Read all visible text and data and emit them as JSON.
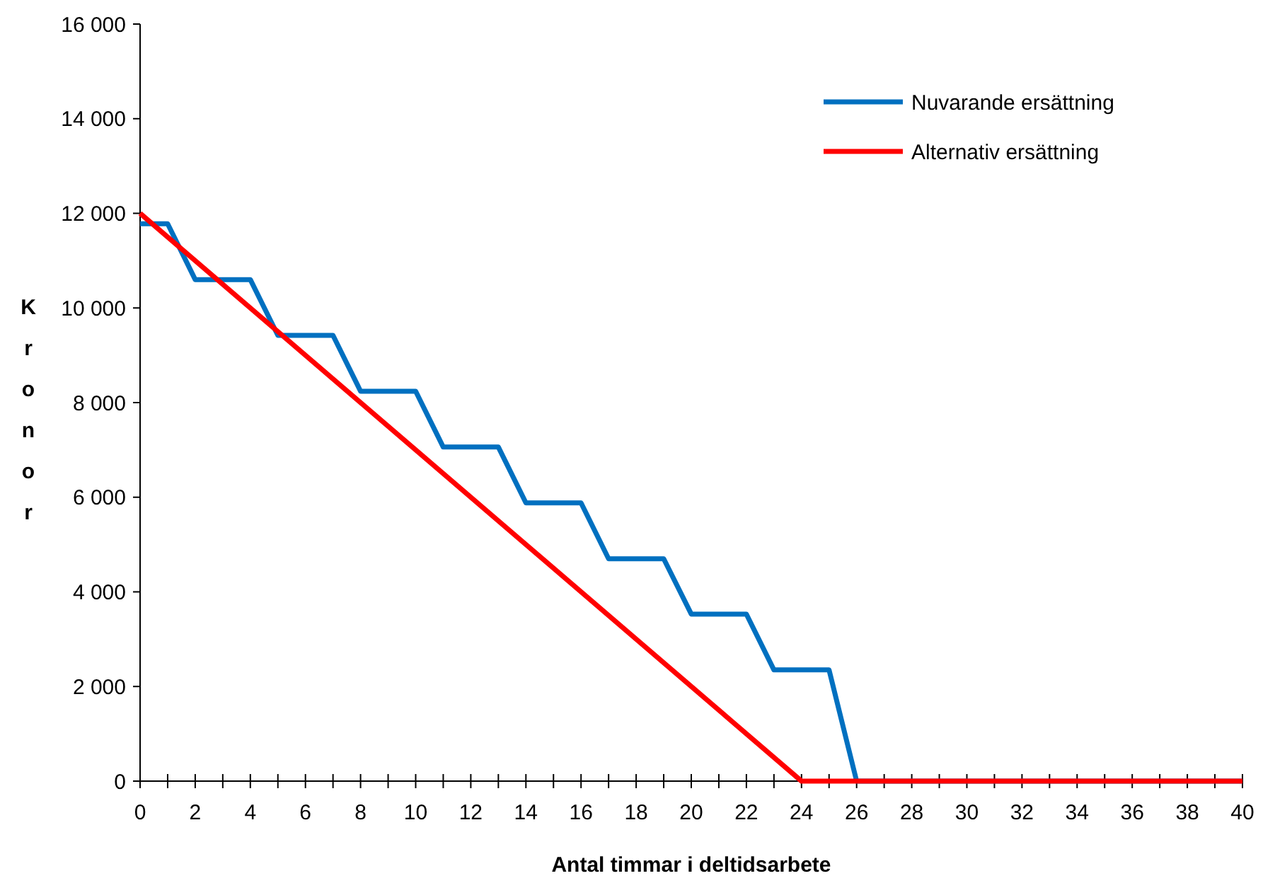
{
  "chart_data": {
    "type": "line",
    "xlabel": "Antal timmar i deltidsarbete",
    "ylabel": "Kronor",
    "xlim": [
      0,
      40
    ],
    "xticks": [
      0,
      {
        "value": 1,
        "label": null
      },
      2,
      {
        "value": 3,
        "label": null
      },
      4,
      {
        "value": 5,
        "label": null
      },
      6,
      {
        "value": 7,
        "label": null
      },
      8,
      {
        "value": 9,
        "label": null
      },
      10,
      {
        "value": 11,
        "label": null
      },
      12,
      {
        "value": 13,
        "label": null
      },
      14,
      {
        "value": 15,
        "label": null
      },
      16,
      {
        "value": 17,
        "label": null
      },
      18,
      {
        "value": 19,
        "label": null
      },
      20,
      {
        "value": 21,
        "label": null
      },
      22,
      {
        "value": 23,
        "label": null
      },
      24,
      {
        "value": 25,
        "label": null
      },
      26,
      {
        "value": 27,
        "label": null
      },
      28,
      {
        "value": 29,
        "label": null
      },
      30,
      {
        "value": 31,
        "label": null
      },
      32,
      {
        "value": 33,
        "label": null
      },
      34,
      {
        "value": 35,
        "label": null
      },
      36,
      {
        "value": 37,
        "label": null
      },
      38,
      {
        "value": 39,
        "label": null
      },
      40
    ],
    "ylim": [
      0,
      16000
    ],
    "yticks": [
      0,
      {
        "value": 2000,
        "label": "2 000"
      },
      {
        "value": 4000,
        "label": "4 000"
      },
      {
        "value": 6000,
        "label": "6 000"
      },
      {
        "value": 8000,
        "label": "8 000"
      },
      {
        "value": 10000,
        "label": "10 000"
      },
      {
        "value": 12000,
        "label": "12 000"
      },
      {
        "value": 14000,
        "label": "14 000"
      },
      {
        "value": 16000,
        "label": "16 000"
      }
    ],
    "grid": false,
    "legend": "top right",
    "marker": "none",
    "line_style": "solid",
    "series": [
      {
        "name": "Nuvarande ersättning",
        "color": "#0070c0",
        "x": [
          0,
          1,
          2,
          4,
          5,
          7,
          8,
          10,
          11,
          13,
          14,
          16,
          17,
          19,
          20,
          22,
          23,
          25,
          26,
          40
        ],
        "values": [
          11780,
          11780,
          10600,
          10600,
          9420,
          9420,
          8240,
          8240,
          7060,
          7060,
          5880,
          5880,
          4700,
          4700,
          3530,
          3530,
          2350,
          2350,
          0,
          0
        ]
      },
      {
        "name": "Alternativ ersättning",
        "color": "#ff0000",
        "x": [
          0,
          24,
          40
        ],
        "values": [
          12000,
          0,
          0
        ]
      }
    ]
  }
}
